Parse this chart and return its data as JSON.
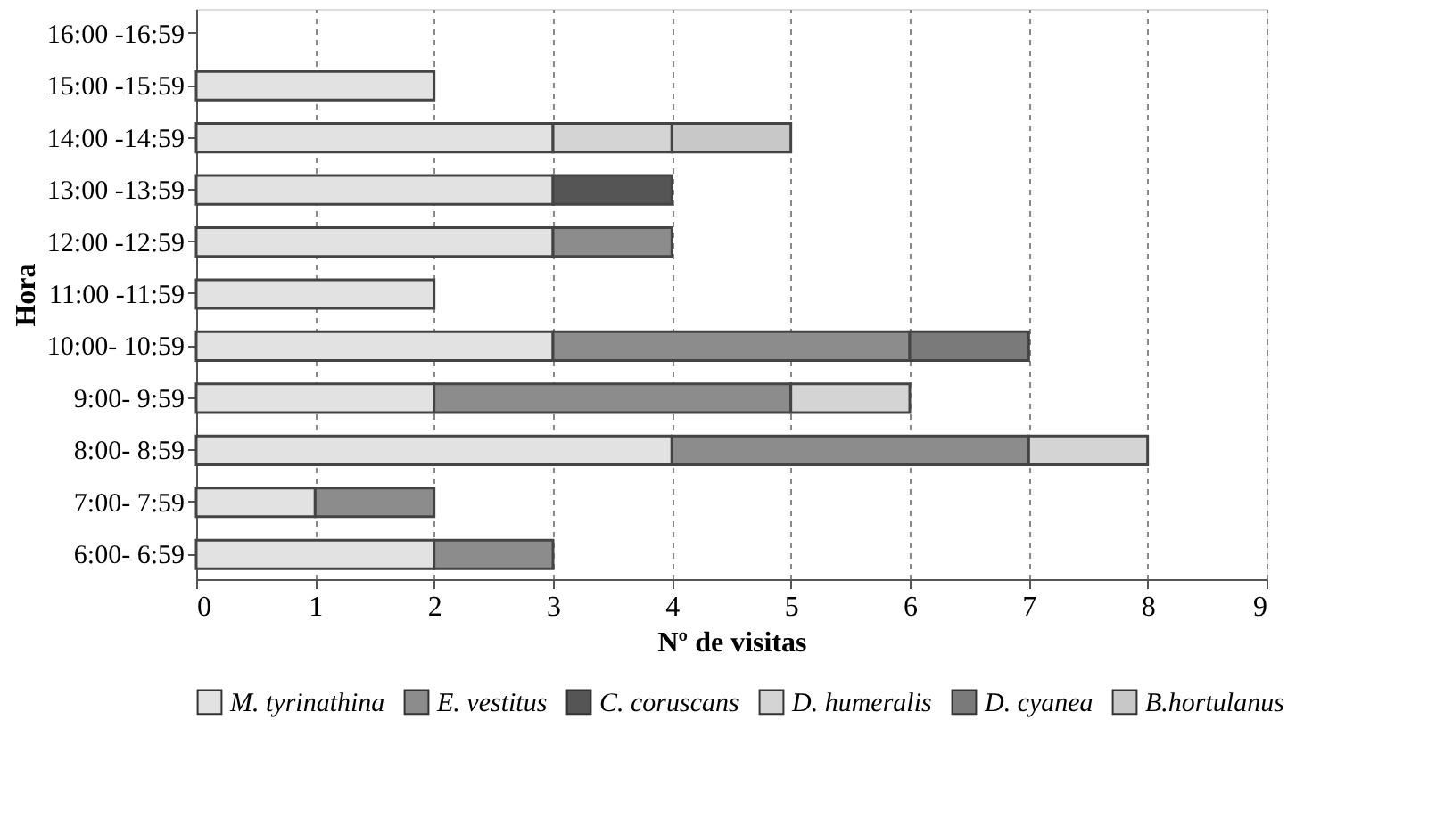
{
  "chart_data": {
    "type": "bar",
    "orientation": "horizontal",
    "stacked": true,
    "xlabel": "Nº de visitas",
    "ylabel": "Hora",
    "categories": [
      "16:00 -16:59",
      "15:00 -15:59",
      "14:00 -14:59",
      "13:00 -13:59",
      "12:00 -12:59",
      "11:00 -11:59",
      "10:00- 10:59",
      "9:00- 9:59",
      "8:00- 8:59",
      "7:00- 7:59",
      "6:00- 6:59"
    ],
    "series": [
      {
        "name": "M. tyrinathina",
        "color": "#e2e2e2",
        "values": [
          null,
          2,
          3,
          3,
          3,
          2,
          3,
          2,
          4,
          1,
          2
        ]
      },
      {
        "name": "E. vestitus",
        "color": "#8c8c8c",
        "values": [
          null,
          null,
          null,
          null,
          1,
          null,
          3,
          3,
          3,
          1,
          1
        ]
      },
      {
        "name": "C. coruscans",
        "color": "#555555",
        "values": [
          null,
          null,
          null,
          1,
          null,
          null,
          null,
          null,
          null,
          null,
          null
        ]
      },
      {
        "name": "D. humeralis",
        "color": "#d4d4d4",
        "values": [
          null,
          null,
          1,
          null,
          null,
          null,
          null,
          1,
          1,
          null,
          null
        ]
      },
      {
        "name": "D. cyanea",
        "color": "#7a7a7a",
        "values": [
          null,
          null,
          null,
          null,
          null,
          null,
          1,
          null,
          null,
          null,
          null
        ]
      },
      {
        "name": "B.hortulanus",
        "color": "#c8c8c8",
        "values": [
          null,
          null,
          1,
          null,
          null,
          null,
          null,
          null,
          null,
          null,
          null
        ]
      }
    ],
    "xlim": [
      0,
      9
    ],
    "xticks": [
      0,
      1,
      2,
      3,
      4,
      5,
      6,
      7,
      8,
      9
    ],
    "grid": "x",
    "legend": "bottom"
  }
}
